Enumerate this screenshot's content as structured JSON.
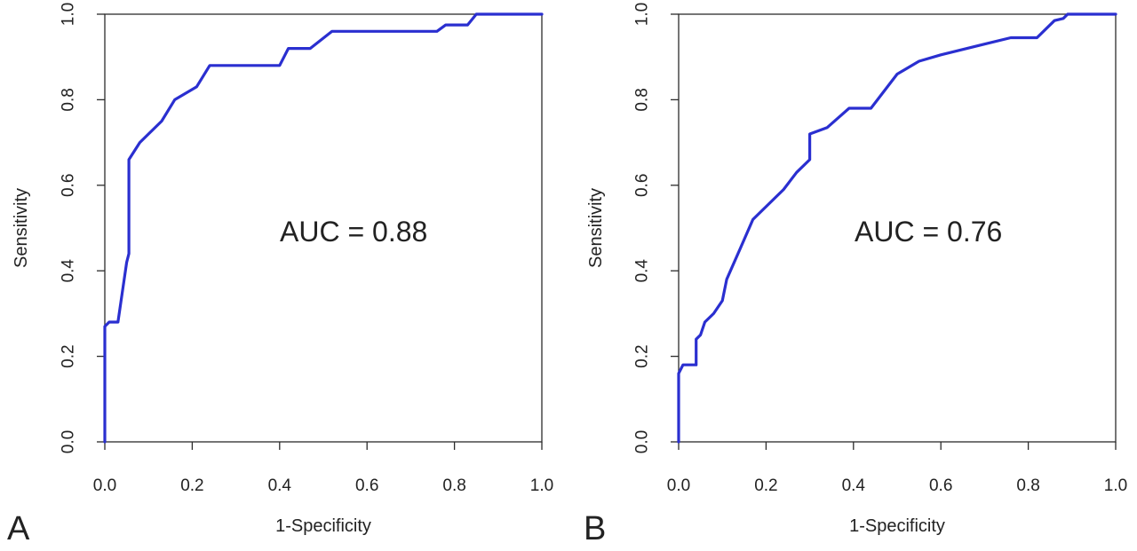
{
  "colors": {
    "curve": "#2a2fd0",
    "axis": "#2b2b2b",
    "text": "#222222"
  },
  "chart_data": [
    {
      "type": "line",
      "panel_label": "A",
      "annotation": "AUC = 0.88",
      "xlabel": "1-Specificity",
      "ylabel": "Sensitivity",
      "xlim": [
        0,
        1
      ],
      "ylim": [
        0,
        1
      ],
      "xticks": [
        "0.0",
        "0.2",
        "0.4",
        "0.6",
        "0.8",
        "1.0"
      ],
      "yticks": [
        "0.0",
        "0.2",
        "0.4",
        "0.6",
        "0.8",
        "1.0"
      ],
      "grid": false,
      "series": [
        {
          "points": [
            [
              0.0,
              0.0
            ],
            [
              0.0,
              0.27
            ],
            [
              0.01,
              0.28
            ],
            [
              0.03,
              0.28
            ],
            [
              0.04,
              0.35
            ],
            [
              0.05,
              0.42
            ],
            [
              0.055,
              0.44
            ],
            [
              0.055,
              0.66
            ],
            [
              0.08,
              0.7
            ],
            [
              0.1,
              0.72
            ],
            [
              0.13,
              0.75
            ],
            [
              0.16,
              0.8
            ],
            [
              0.21,
              0.83
            ],
            [
              0.24,
              0.88
            ],
            [
              0.4,
              0.88
            ],
            [
              0.42,
              0.92
            ],
            [
              0.47,
              0.92
            ],
            [
              0.52,
              0.96
            ],
            [
              0.76,
              0.96
            ],
            [
              0.78,
              0.975
            ],
            [
              0.83,
              0.975
            ],
            [
              0.85,
              1.0
            ],
            [
              1.0,
              1.0
            ]
          ]
        }
      ]
    },
    {
      "type": "line",
      "panel_label": "B",
      "annotation": "AUC = 0.76",
      "xlabel": "1-Specificity",
      "ylabel": "Sensitivity",
      "xlim": [
        0,
        1
      ],
      "ylim": [
        0,
        1
      ],
      "xticks": [
        "0.0",
        "0.2",
        "0.4",
        "0.6",
        "0.8",
        "1.0"
      ],
      "yticks": [
        "0.0",
        "0.2",
        "0.4",
        "0.6",
        "0.8",
        "1.0"
      ],
      "grid": false,
      "series": [
        {
          "points": [
            [
              0.0,
              0.0
            ],
            [
              0.0,
              0.16
            ],
            [
              0.01,
              0.18
            ],
            [
              0.04,
              0.18
            ],
            [
              0.04,
              0.24
            ],
            [
              0.05,
              0.25
            ],
            [
              0.06,
              0.28
            ],
            [
              0.08,
              0.3
            ],
            [
              0.1,
              0.33
            ],
            [
              0.11,
              0.38
            ],
            [
              0.14,
              0.45
            ],
            [
              0.17,
              0.52
            ],
            [
              0.2,
              0.55
            ],
            [
              0.24,
              0.59
            ],
            [
              0.27,
              0.63
            ],
            [
              0.3,
              0.66
            ],
            [
              0.3,
              0.72
            ],
            [
              0.34,
              0.735
            ],
            [
              0.39,
              0.78
            ],
            [
              0.44,
              0.78
            ],
            [
              0.5,
              0.86
            ],
            [
              0.55,
              0.89
            ],
            [
              0.6,
              0.905
            ],
            [
              0.7,
              0.93
            ],
            [
              0.76,
              0.945
            ],
            [
              0.82,
              0.945
            ],
            [
              0.86,
              0.985
            ],
            [
              0.88,
              0.99
            ],
            [
              0.89,
              1.0
            ],
            [
              1.0,
              1.0
            ]
          ]
        }
      ]
    }
  ]
}
